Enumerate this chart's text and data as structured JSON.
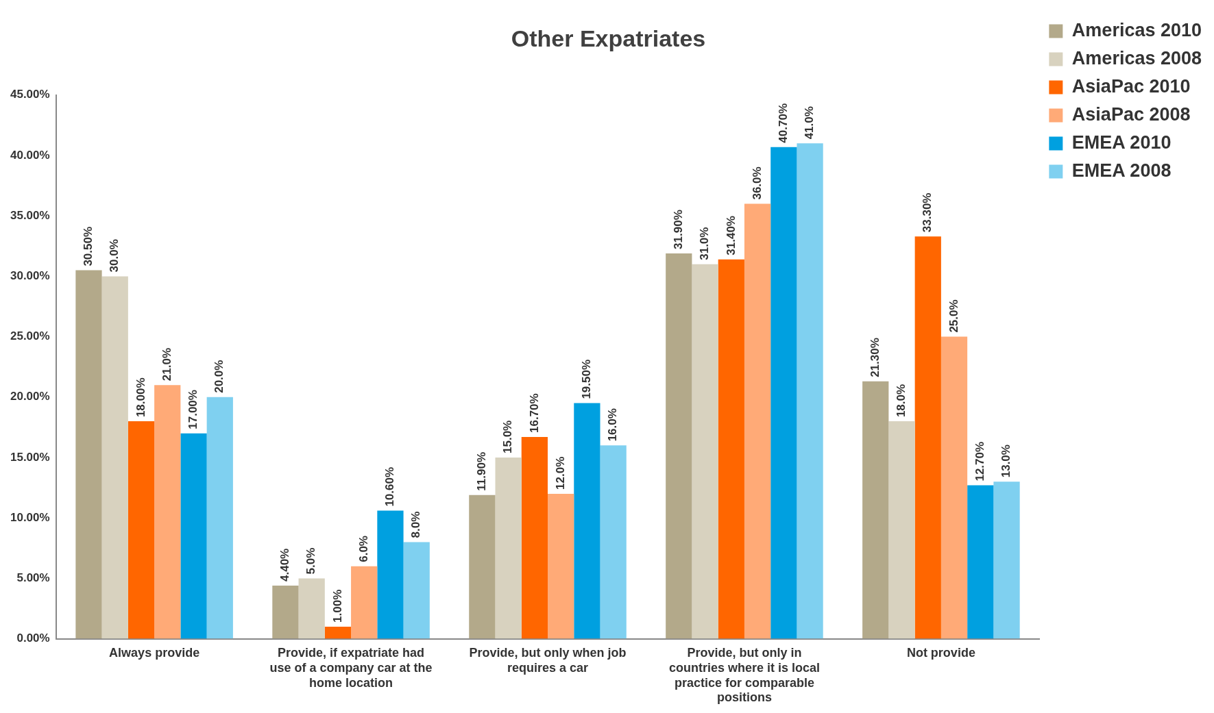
{
  "chart_data": {
    "type": "bar",
    "title": "Other Expatriates",
    "categories": [
      "Always provide",
      "Provide, if expatriate had use of a company car at the home location",
      "Provide, but only when job requires a car",
      "Provide, but only in countries where it is local practice for comparable positions",
      "Not provide"
    ],
    "series": [
      {
        "name": "Americas 2010",
        "color": "#b3a98a",
        "values": [
          30.5,
          4.4,
          11.9,
          31.9,
          21.3
        ],
        "value_labels": [
          "30.50%",
          "4.40%",
          "11.90%",
          "31.90%",
          "21.30%"
        ]
      },
      {
        "name": "Americas 2008",
        "color": "#d8d2bf",
        "values": [
          30,
          5,
          15,
          31,
          18
        ],
        "value_labels": [
          "30.0%",
          "5.0%",
          "15.0%",
          "31.0%",
          "18.0%"
        ]
      },
      {
        "name": "AsiaPac 2010",
        "color": "#ff6600",
        "values": [
          18,
          1,
          16.7,
          31.4,
          33.3
        ],
        "value_labels": [
          "18.00%",
          "1.00%",
          "16.70%",
          "31.40%",
          "33.30%"
        ]
      },
      {
        "name": "AsiaPac 2008",
        "color": "#ffaa77",
        "values": [
          21,
          6,
          12,
          36,
          25
        ],
        "value_labels": [
          "21.0%",
          "6.0%",
          "12.0%",
          "36.0%",
          "25.0%"
        ]
      },
      {
        "name": "EMEA 2010",
        "color": "#00a0e0",
        "values": [
          17,
          10.6,
          19.5,
          40.7,
          12.7
        ],
        "value_labels": [
          "17.00%",
          "10.60%",
          "19.50%",
          "40.70%",
          "12.70%"
        ]
      },
      {
        "name": "EMEA 2008",
        "color": "#7fd0f0",
        "values": [
          20,
          8,
          16,
          41,
          13
        ],
        "value_labels": [
          "20.0%",
          "8.0%",
          "16.0%",
          "41.0%",
          "13.0%"
        ]
      }
    ],
    "ylim": [
      0,
      45
    ],
    "yticks": [
      {
        "value": 0,
        "label": "0.00%"
      },
      {
        "value": 5,
        "label": "5.00%"
      },
      {
        "value": 10,
        "label": "10.00%"
      },
      {
        "value": 15,
        "label": "15.00%"
      },
      {
        "value": 20,
        "label": "20.00%"
      },
      {
        "value": 25,
        "label": "25.00%"
      },
      {
        "value": 30,
        "label": "30.00%"
      },
      {
        "value": 35,
        "label": "35.00%"
      },
      {
        "value": 40,
        "label": "40.00%"
      },
      {
        "value": 45,
        "label": "45.00%"
      }
    ],
    "grid": false,
    "legend": "top right"
  }
}
